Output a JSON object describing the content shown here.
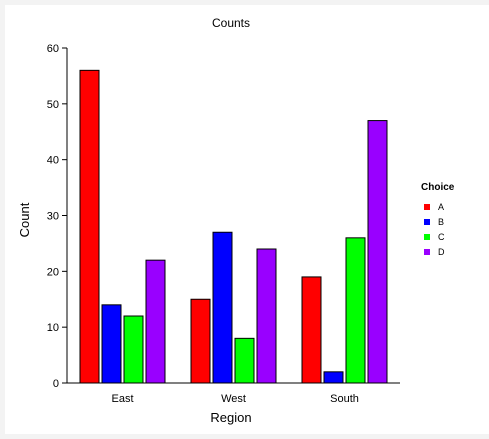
{
  "chart_data": {
    "type": "bar",
    "title": "Counts",
    "xlabel": "Region",
    "ylabel": "Count",
    "categories": [
      "East",
      "West",
      "South"
    ],
    "series": [
      {
        "name": "A",
        "color": "#ff0000",
        "values": [
          56,
          15,
          19
        ]
      },
      {
        "name": "B",
        "color": "#0000ff",
        "values": [
          14,
          27,
          2
        ]
      },
      {
        "name": "C",
        "color": "#00ff00",
        "values": [
          12,
          8,
          26
        ]
      },
      {
        "name": "D",
        "color": "#9900ff",
        "values": [
          22,
          24,
          47
        ]
      }
    ],
    "ylim": [
      0,
      60
    ],
    "yticks": [
      0,
      10,
      20,
      30,
      40,
      50,
      60
    ],
    "legend": {
      "title": "Choice",
      "position": "right"
    },
    "grid": false
  }
}
